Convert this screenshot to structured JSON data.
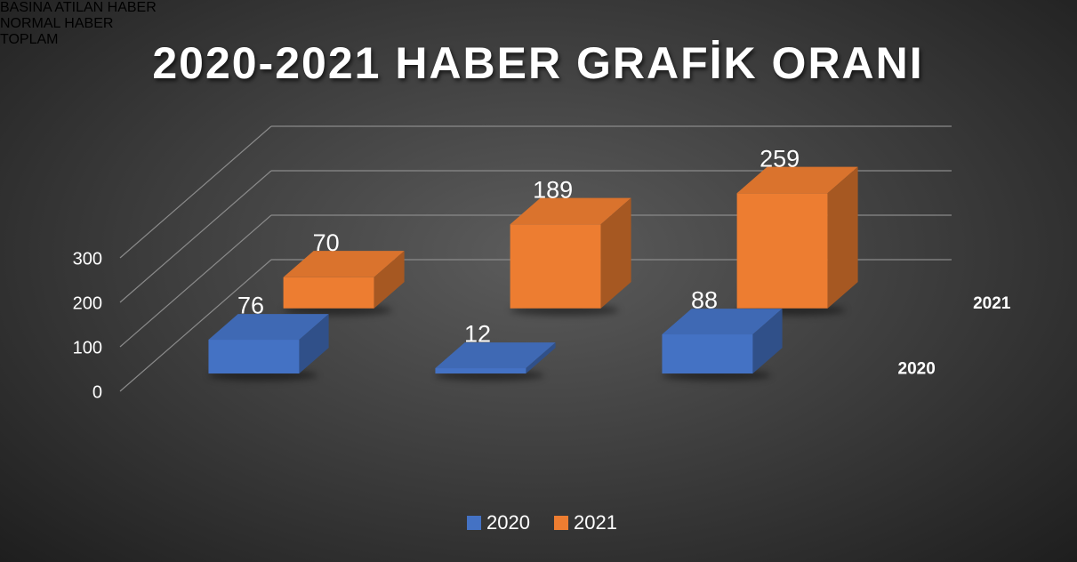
{
  "chart_data": {
    "type": "bar3d",
    "title": "2020-2021 HABER GRAFİK ORANI",
    "categories": [
      "BASINA ATILAN HABER",
      "NORMAL HABER",
      "TOPLAM"
    ],
    "series": [
      {
        "name": "2020",
        "color": "#4472c4",
        "values": [
          76,
          12,
          88
        ]
      },
      {
        "name": "2021",
        "color": "#ed7d31",
        "values": [
          70,
          189,
          259
        ]
      }
    ],
    "ylim": [
      0,
      300
    ],
    "yticks": [
      0,
      100,
      200,
      300
    ],
    "grid": true,
    "legend": "bottom"
  }
}
